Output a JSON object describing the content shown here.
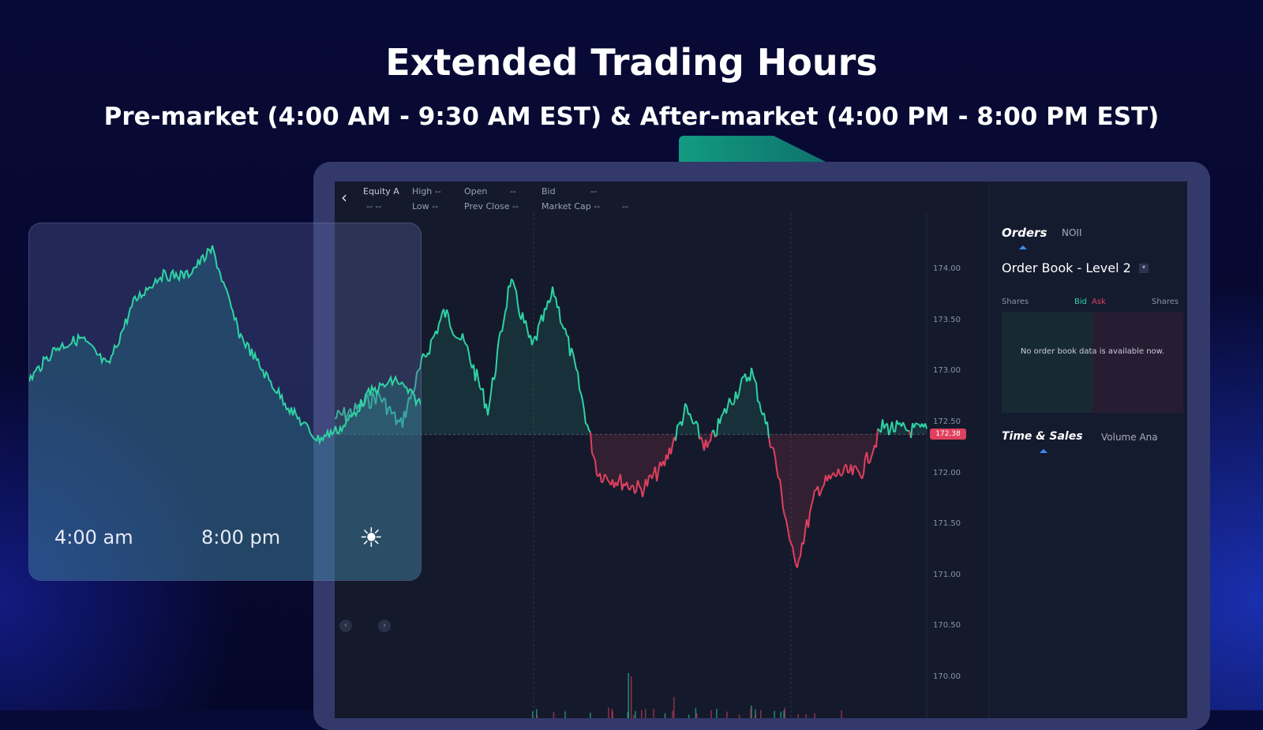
{
  "hero": {
    "title": "Extended Trading Hours",
    "subtitle": "Pre-market (4:00 AM - 9:30 AM EST) & After-market (4:00 PM - 8:00 PM EST)"
  },
  "toolbar": {
    "symbol": "Equity A",
    "symbol_sub": "-- --",
    "high": "High --",
    "low": "Low --",
    "open": "Open",
    "open_val": "--",
    "prev_close": "Prev Close --",
    "bid": "Bid",
    "bid_val": "--",
    "market_cap": "Market Cap --",
    "extra": "--"
  },
  "chart": {
    "y_ticks": [
      "174.00",
      "173.50",
      "173.00",
      "172.50",
      "172.00",
      "171.50",
      "171.00",
      "170.50",
      "170.00"
    ],
    "current_price": "172.38",
    "up_color": "#2fd3a4",
    "down_color": "#e0405f",
    "prices": [
      172.54,
      172.62,
      172.77,
      172.46,
      173.08,
      173.58,
      173.23,
      172.62,
      173.89,
      173.23,
      173.78,
      173.0,
      172.0,
      171.92,
      171.84,
      172.07,
      172.62,
      172.23,
      172.69,
      173.0,
      172.23,
      171.07,
      171.84,
      172.0,
      172.0,
      172.46,
      172.42,
      172.42
    ]
  },
  "panel": {
    "tabs": [
      "Orders",
      "NOII"
    ],
    "order_book_title": "Order Book - Level 2",
    "col_shares_left": "Shares",
    "col_bid": "Bid",
    "col_ask": "Ask",
    "col_shares_right": "Shares",
    "empty_message": "No order book data is available now.",
    "bottom_tabs": [
      "Time & Sales",
      "Volume Ana"
    ]
  },
  "inset": {
    "start_label": "4:00 am",
    "end_label": "8:00 pm",
    "levels": [
      40,
      52,
      56,
      45,
      70,
      80,
      80,
      90,
      58,
      42,
      28,
      17,
      22,
      35,
      40,
      30
    ]
  }
}
